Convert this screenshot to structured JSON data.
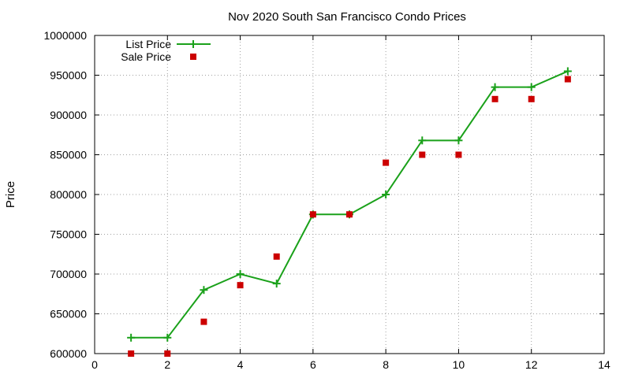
{
  "chart_data": {
    "type": "line",
    "title": "Nov 2020 South San Francisco Condo Prices",
    "xlabel": "",
    "ylabel": "Price",
    "xlim": [
      0,
      14
    ],
    "ylim": [
      600000,
      1000000
    ],
    "x_ticks": [
      0,
      2,
      4,
      6,
      8,
      10,
      12,
      14
    ],
    "y_ticks": [
      600000,
      650000,
      700000,
      750000,
      800000,
      850000,
      900000,
      950000,
      1000000
    ],
    "grid": true,
    "legend_position": "top-left",
    "series": [
      {
        "name": "List Price",
        "kind": "line+plus-markers",
        "color": "#1aa11a",
        "points": [
          [
            1,
            620000
          ],
          [
            2,
            620000
          ],
          [
            3,
            680000
          ],
          [
            4,
            700000
          ],
          [
            5,
            688000
          ],
          [
            6,
            775000
          ],
          [
            7,
            775000
          ],
          [
            8,
            800000
          ],
          [
            9,
            868000
          ],
          [
            10,
            868000
          ],
          [
            11,
            935000
          ],
          [
            12,
            935000
          ],
          [
            13,
            955000
          ]
        ]
      },
      {
        "name": "Sale Price",
        "kind": "square-markers",
        "color": "#cc0000",
        "points": [
          [
            1,
            600000
          ],
          [
            2,
            600000
          ],
          [
            3,
            640000
          ],
          [
            4,
            686000
          ],
          [
            5,
            722000
          ],
          [
            6,
            775000
          ],
          [
            7,
            775000
          ],
          [
            8,
            840000
          ],
          [
            9,
            850000
          ],
          [
            10,
            850000
          ],
          [
            11,
            920000
          ],
          [
            12,
            920000
          ],
          [
            13,
            945000
          ]
        ]
      }
    ]
  }
}
